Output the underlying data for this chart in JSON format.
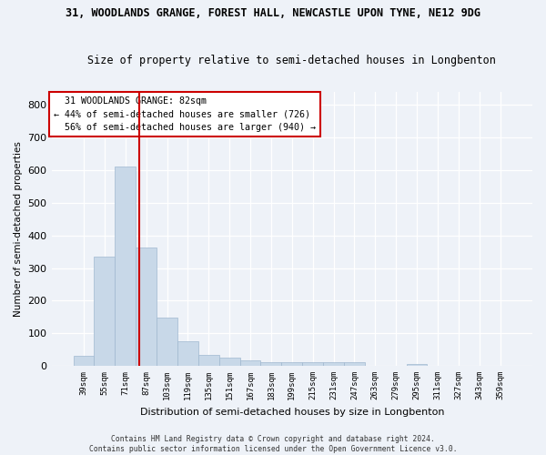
{
  "title_line1": "31, WOODLANDS GRANGE, FOREST HALL, NEWCASTLE UPON TYNE, NE12 9DG",
  "title_line2": "Size of property relative to semi-detached houses in Longbenton",
  "xlabel": "Distribution of semi-detached houses by size in Longbenton",
  "ylabel": "Number of semi-detached properties",
  "property_label": "31 WOODLANDS GRANGE: 82sqm",
  "pct_smaller": 44,
  "pct_larger": 56,
  "n_smaller": 726,
  "n_larger": 940,
  "categories": [
    "39sqm",
    "55sqm",
    "71sqm",
    "87sqm",
    "103sqm",
    "119sqm",
    "135sqm",
    "151sqm",
    "167sqm",
    "183sqm",
    "199sqm",
    "215sqm",
    "231sqm",
    "247sqm",
    "263sqm",
    "279sqm",
    "295sqm",
    "311sqm",
    "327sqm",
    "343sqm",
    "359sqm"
  ],
  "values": [
    30,
    335,
    610,
    362,
    147,
    75,
    35,
    25,
    18,
    12,
    12,
    12,
    12,
    10,
    0,
    0,
    5,
    0,
    0,
    0,
    0
  ],
  "bar_color": "#c8d8e8",
  "bar_edge_color": "#a0b8d0",
  "vline_color": "#cc0000",
  "annotation_box_color": "#cc0000",
  "background_color": "#eef2f8",
  "ylim": [
    0,
    840
  ],
  "yticks": [
    0,
    100,
    200,
    300,
    400,
    500,
    600,
    700,
    800
  ],
  "footer_line1": "Contains HM Land Registry data © Crown copyright and database right 2024.",
  "footer_line2": "Contains public sector information licensed under the Open Government Licence v3.0."
}
